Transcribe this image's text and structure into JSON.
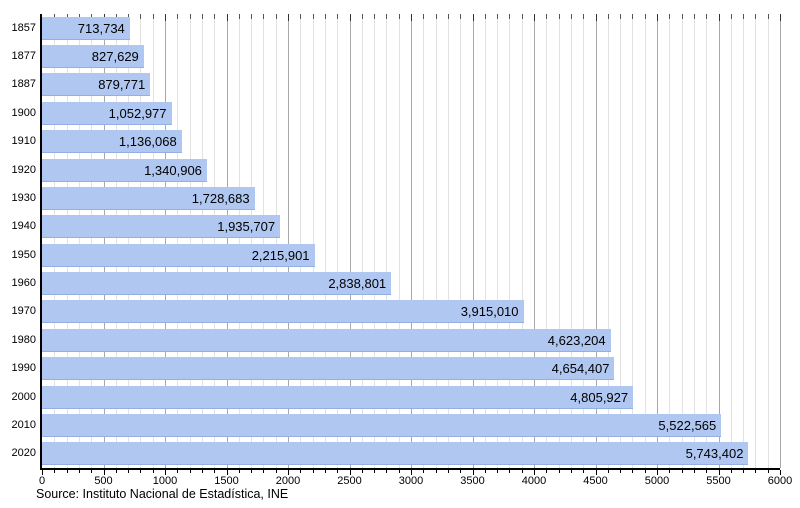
{
  "chart_data": {
    "type": "bar",
    "orientation": "horizontal",
    "title": "",
    "xlabel": "",
    "ylabel": "",
    "categories": [
      "1857",
      "1877",
      "1887",
      "1900",
      "1910",
      "1920",
      "1930",
      "1940",
      "1950",
      "1960",
      "1970",
      "1980",
      "1990",
      "2000",
      "2010",
      "2020"
    ],
    "values": [
      713734,
      827629,
      879771,
      1052977,
      1136068,
      1340906,
      1728683,
      1935707,
      2215901,
      2838801,
      3915010,
      4623204,
      4654407,
      4805927,
      5522565,
      5743402
    ],
    "value_labels": [
      "713,734",
      "827,629",
      "879,771",
      "1,052,977",
      "1,136,068",
      "1,340,906",
      "1,728,683",
      "1,935,707",
      "2,215,901",
      "2,838,801",
      "3,915,010",
      "4,623,204",
      "4,654,407",
      "4,805,927",
      "5,522,565",
      "5,743,402"
    ],
    "x_axis_units_per_label": 1000,
    "xlim": [
      0,
      6000
    ],
    "x_major_step": 500,
    "x_minor_step": 100,
    "x_tick_labels": [
      "0",
      "500",
      "1000",
      "1500",
      "2000",
      "2500",
      "3000",
      "3500",
      "4000",
      "4500",
      "5000",
      "5500",
      "6000"
    ],
    "grid": true,
    "legend": false,
    "bar_color": "#afc7f1",
    "source": "Source: Instituto Nacional de Estadística, INE"
  }
}
